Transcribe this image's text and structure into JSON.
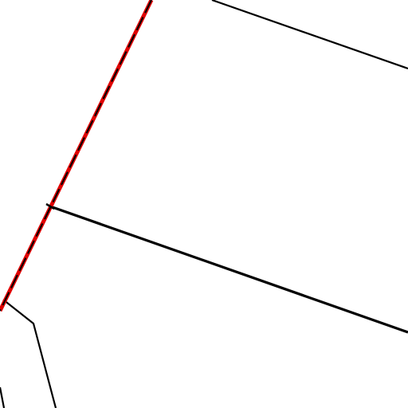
{
  "map": {
    "background_color": "#ffffff",
    "line_color": "#000000",
    "highlight_color": "#e00000",
    "highlight_style": "red line with black dashed overlay",
    "features": [
      "highlighted-boundary-line",
      "upper-parcel-line",
      "middle-parcel-line",
      "lower-left-parcel-line",
      "bottom-left-edge-line"
    ]
  }
}
